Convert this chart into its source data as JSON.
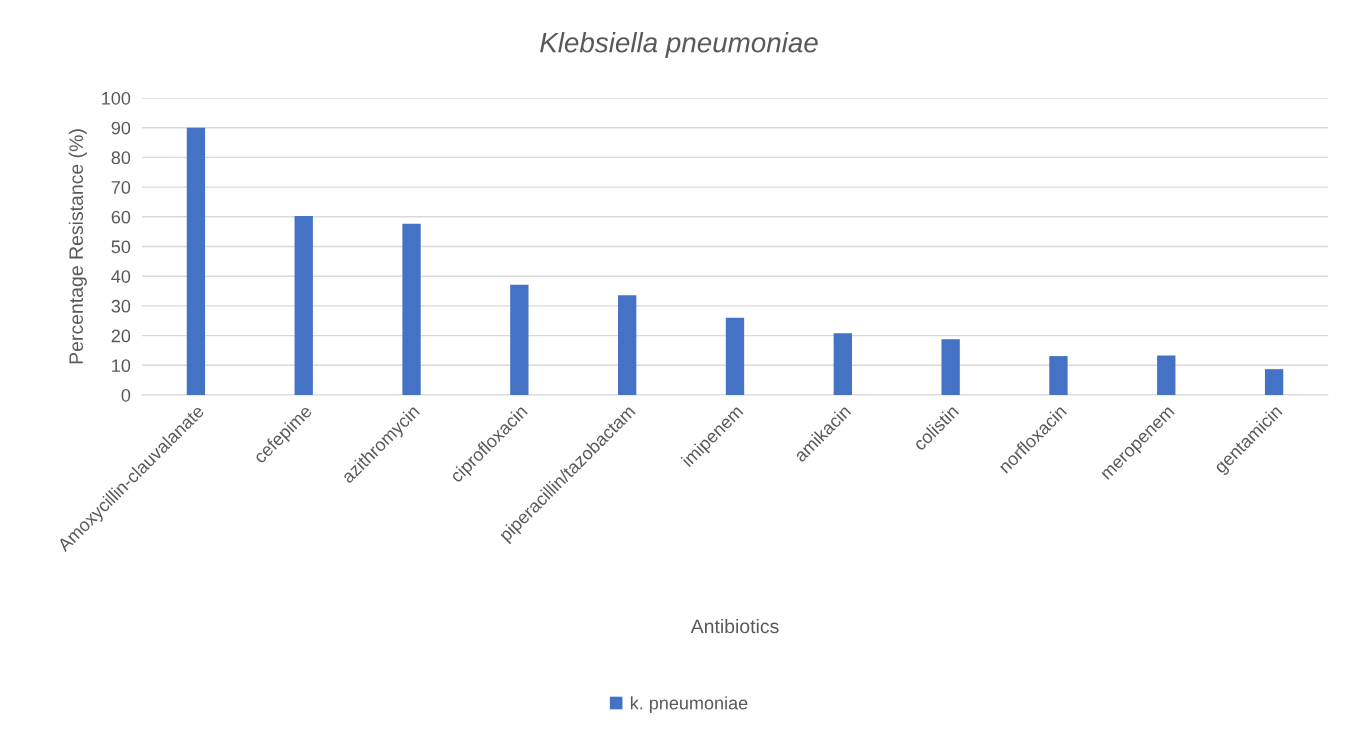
{
  "chart_data": {
    "type": "bar",
    "title": "Klebsiella pneumoniae",
    "xlabel": "Antibiotics",
    "ylabel": "Percentage Resistance (%)",
    "categories": [
      "Amoxycillin-clauvalanate",
      "cefepime",
      "azithromycin",
      "ciprofloxacin",
      "piperacillin/tazobactam",
      "imipenem",
      "amikacin",
      "colistin",
      "norfloxacin",
      "meropenem",
      "gentamicin"
    ],
    "series": [
      {
        "name": "k. pneumoniae",
        "color": "#4472c4",
        "values": [
          90,
          60.3,
          57.7,
          37.1,
          33.6,
          26,
          20.8,
          18.8,
          13.1,
          13.3,
          8.7
        ]
      }
    ],
    "ylim": [
      0,
      100
    ],
    "yticks": [
      0,
      10,
      20,
      30,
      40,
      50,
      60,
      70,
      80,
      90,
      100
    ],
    "grid": "y",
    "legend": "bottom"
  }
}
